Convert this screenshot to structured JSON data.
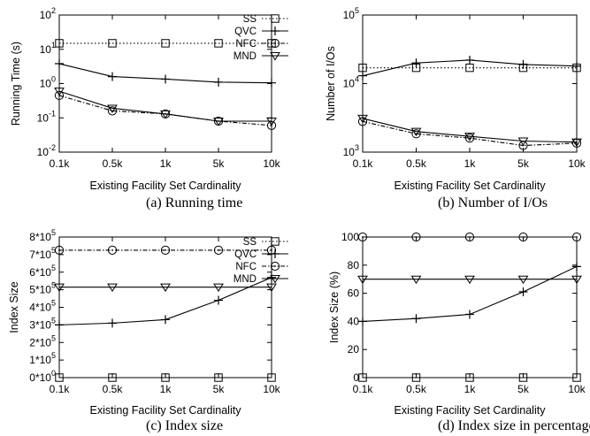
{
  "series_styles": {
    "SS": {
      "marker": "square",
      "dash": "1.5,2.5",
      "width": 1.1
    },
    "QVC": {
      "marker": "plus",
      "dash": "",
      "width": 1.1
    },
    "NFC": {
      "marker": "circle",
      "dash": "5,2,1.5,2",
      "width": 1.1
    },
    "MND": {
      "marker": "triangle",
      "dash": "",
      "width": 1.1
    }
  },
  "chart_data": [
    {
      "id": "a",
      "type": "line",
      "caption": "(a)  Running time",
      "xlabel": "Existing Facility Set Cardinality",
      "ylabel": "Running Time (s)",
      "yscale": "log",
      "ylim": [
        0.01,
        100
      ],
      "yticks": [
        {
          "v": 0.01,
          "b": "10",
          "e": "-2"
        },
        {
          "v": 0.1,
          "b": "10",
          "e": "-1"
        },
        {
          "v": 1,
          "b": "10",
          "e": "0"
        },
        {
          "v": 10,
          "b": "10",
          "e": "1"
        },
        {
          "v": 100,
          "b": "10",
          "e": "2"
        }
      ],
      "categories": [
        "0.1k",
        "0.5k",
        "1k",
        "5k",
        "10k"
      ],
      "legend": true,
      "series": [
        {
          "name": "SS",
          "values": [
            15,
            15,
            15,
            15,
            15
          ]
        },
        {
          "name": "QVC",
          "values": [
            3.8,
            1.6,
            1.35,
            1.1,
            1.05
          ]
        },
        {
          "name": "NFC",
          "values": [
            0.45,
            0.16,
            0.13,
            0.08,
            0.06
          ]
        },
        {
          "name": "MND",
          "values": [
            0.6,
            0.19,
            0.13,
            0.08,
            0.08
          ]
        }
      ]
    },
    {
      "id": "b",
      "type": "line",
      "caption": "(b)  Number of I/Os",
      "xlabel": "Existing Facility Set Cardinality",
      "ylabel": "Number of I/Os",
      "yscale": "log",
      "ylim": [
        1000,
        100000
      ],
      "yticks": [
        {
          "v": 1000,
          "b": "10",
          "e": "3"
        },
        {
          "v": 10000,
          "b": "10",
          "e": "4"
        },
        {
          "v": 100000,
          "b": "10",
          "e": "5"
        }
      ],
      "categories": [
        "0.1k",
        "0.5k",
        "1k",
        "5k",
        "10k"
      ],
      "legend": false,
      "series": [
        {
          "name": "SS",
          "values": [
            17000,
            17000,
            17000,
            17000,
            17000
          ]
        },
        {
          "name": "QVC",
          "values": [
            13000,
            20000,
            22000,
            19000,
            18000
          ]
        },
        {
          "name": "NFC",
          "values": [
            2800,
            1850,
            1600,
            1250,
            1350
          ]
        },
        {
          "name": "MND",
          "values": [
            3100,
            2000,
            1700,
            1450,
            1400
          ]
        }
      ]
    },
    {
      "id": "c",
      "type": "line",
      "caption": "(c)  Index size",
      "xlabel": "Existing Facility Set Cardinality",
      "ylabel": "Index Size",
      "yscale": "linear",
      "ylim": [
        0,
        800000
      ],
      "yticks": [
        {
          "v": 0,
          "t": "0*10",
          "e": "0"
        },
        {
          "v": 100000,
          "t": "1*10",
          "e": "5"
        },
        {
          "v": 200000,
          "t": "2*10",
          "e": "5"
        },
        {
          "v": 300000,
          "t": "3*10",
          "e": "5"
        },
        {
          "v": 400000,
          "t": "4*10",
          "e": "5"
        },
        {
          "v": 500000,
          "t": "5*10",
          "e": "5"
        },
        {
          "v": 600000,
          "t": "6*10",
          "e": "5"
        },
        {
          "v": 700000,
          "t": "7*10",
          "e": "5"
        },
        {
          "v": 800000,
          "t": "8*10",
          "e": "5"
        }
      ],
      "categories": [
        "0.1k",
        "0.5k",
        "1k",
        "5k",
        "10k"
      ],
      "legend": true,
      "series": [
        {
          "name": "SS",
          "values": [
            0,
            0,
            0,
            0,
            0
          ]
        },
        {
          "name": "QVC",
          "values": [
            300000,
            310000,
            330000,
            440000,
            570000
          ]
        },
        {
          "name": "NFC",
          "values": [
            725000,
            725000,
            725000,
            725000,
            725000
          ]
        },
        {
          "name": "MND",
          "values": [
            515000,
            515000,
            515000,
            515000,
            515000
          ]
        }
      ]
    },
    {
      "id": "d",
      "type": "line",
      "caption": "(d)  Index size in percentage",
      "xlabel": "Existing Facility Set Cardinality",
      "ylabel": "Index Size (%)",
      "yscale": "linear",
      "ylim": [
        0,
        100
      ],
      "yticks": [
        {
          "v": 0,
          "t": "0"
        },
        {
          "v": 20,
          "t": "20"
        },
        {
          "v": 40,
          "t": "40"
        },
        {
          "v": 60,
          "t": "60"
        },
        {
          "v": 80,
          "t": "80"
        },
        {
          "v": 100,
          "t": "100"
        }
      ],
      "categories": [
        "0.1k",
        "0.5k",
        "1k",
        "5k",
        "10k"
      ],
      "legend": false,
      "series": [
        {
          "name": "SS",
          "values": [
            0,
            0,
            0,
            0,
            0
          ]
        },
        {
          "name": "QVC",
          "values": [
            40,
            42,
            45,
            61,
            79
          ]
        },
        {
          "name": "NFC",
          "values": [
            100,
            100,
            100,
            100,
            100
          ]
        },
        {
          "name": "MND",
          "values": [
            70,
            70,
            70,
            70,
            70
          ]
        }
      ]
    }
  ]
}
